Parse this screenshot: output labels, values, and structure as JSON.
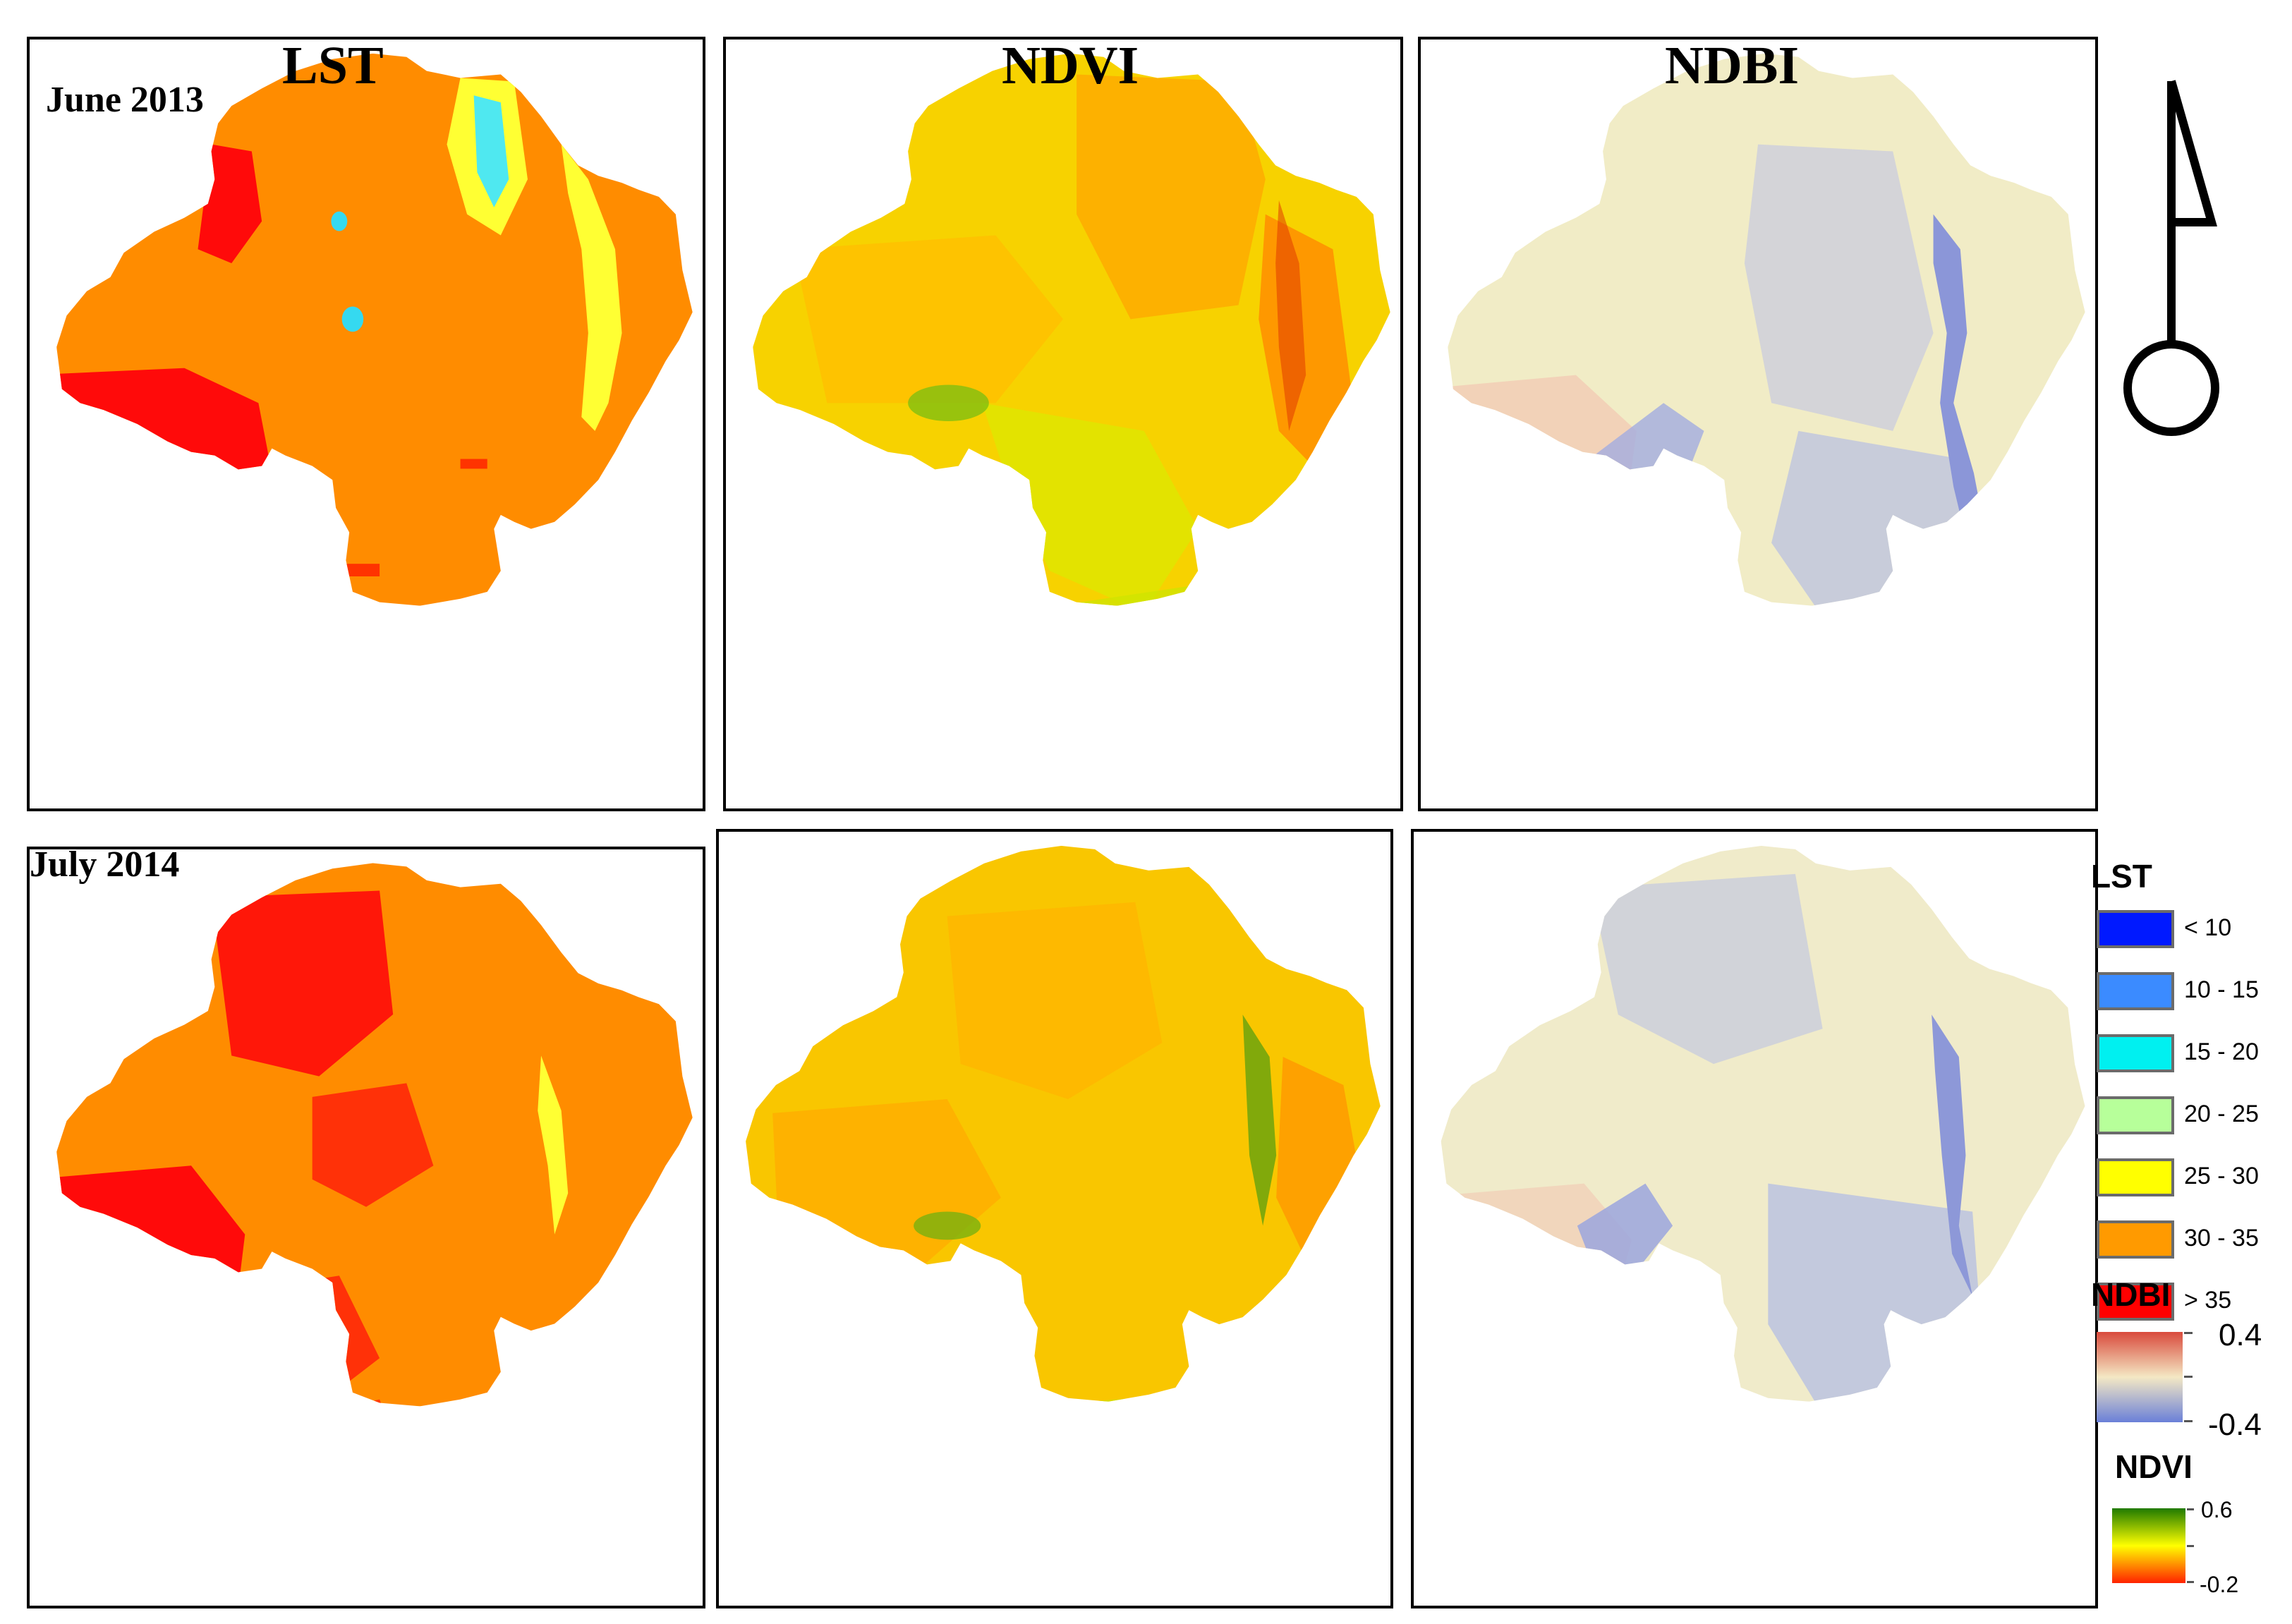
{
  "columns": {
    "lst": "LST",
    "ndvi": "NDVI",
    "ndbi": "NDBI"
  },
  "dates": {
    "row1": "June 2013",
    "row2": "July 2014"
  },
  "legend": {
    "lst": {
      "title": "LST",
      "classes": [
        {
          "label": "< 10",
          "color": "#0019ff"
        },
        {
          "label": "10 - 15",
          "color": "#3b8bff"
        },
        {
          "label": "15 - 20",
          "color": "#00f0f0"
        },
        {
          "label": "20 - 25",
          "color": "#b7ff9a"
        },
        {
          "label": "25 - 30",
          "color": "#ffff00"
        },
        {
          "label": "30 - 35",
          "color": "#ff9a00"
        },
        {
          "label": "> 35",
          "color": "#ff0000"
        }
      ]
    },
    "ndbi": {
      "title": "NDBI",
      "max": "0.4",
      "min": "-0.4",
      "colors": [
        "#d94a3c",
        "#f4e8c4",
        "#6a80d8"
      ]
    },
    "ndvi": {
      "title": "NDVI",
      "max": "0.6",
      "min": "-0.2",
      "colors": [
        "#1f7a00",
        "#ffff00",
        "#ff2200"
      ]
    }
  },
  "north_arrow": {
    "icon": "north-arrow-icon"
  }
}
